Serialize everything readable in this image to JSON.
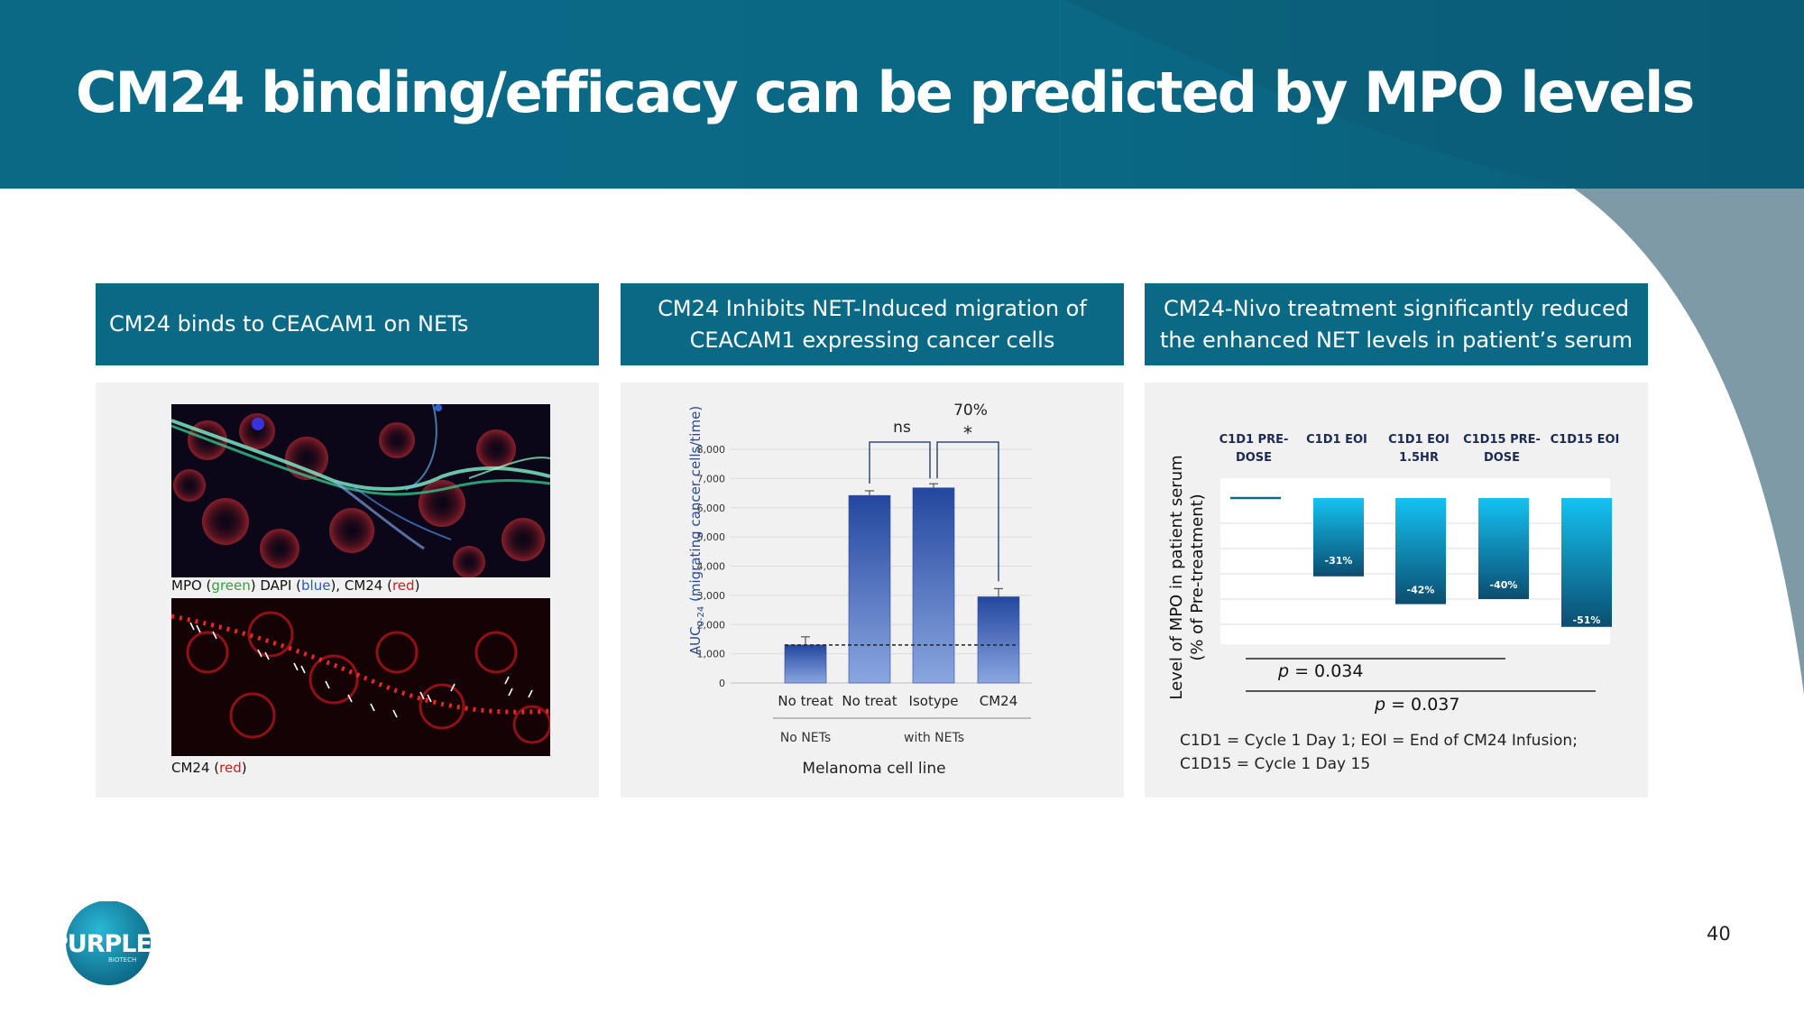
{
  "slide": {
    "title": "CM24 binding/efficacy can be predicted by MPO levels",
    "page_number": "40",
    "colors": {
      "header": "#0a6a86",
      "panel_bg": "#f1f1f1",
      "bar_blue": "#2f56b0",
      "bar_teal": "#11b6e6"
    }
  },
  "logo": {
    "text": "PURPLE",
    "subtext": "BIOTECH"
  },
  "panel1": {
    "header": "CM24 binds to CEACAM1 on NETs",
    "caption1": {
      "a": "MPO (",
      "green": "green",
      "b": ") DAPI (",
      "blue": "blue",
      "c": "), CM24 (",
      "red": "red",
      "d": ")"
    },
    "caption2": {
      "a": "CM24 (",
      "red": "red",
      "b": ")"
    }
  },
  "panel2": {
    "header": "CM24 Inhibits NET-Induced migration of\nCEACAM1 expressing cancer cells"
  },
  "panel3": {
    "header": "CM24-Nivo treatment significantly reduced\nthe enhanced NET levels in patient’s serum",
    "definitions": [
      "C1D1 = Cycle 1 Day 1; EOI = End of CM24 Infusion;",
      "C1D15 = Cycle 1 Day 15"
    ]
  },
  "chart_data": [
    {
      "type": "bar",
      "title": "",
      "ylabel": "AUC0-24 (migrating cancer cells/time)",
      "ylabel_main": "AUC",
      "ylabel_sub": "0-24",
      "ylabel_rest": " (migrating cancer cells/time)",
      "xlabel": "Melanoma cell line",
      "categories": [
        "No treat",
        "No treat",
        "Isotype",
        "CM24"
      ],
      "values": [
        1300,
        6420,
        6680,
        2950
      ],
      "errors": [
        280,
        160,
        140,
        280
      ],
      "groups": [
        {
          "label": "No NETs",
          "members": [
            0
          ]
        },
        {
          "label": "with NETs",
          "members": [
            1,
            2,
            3
          ]
        }
      ],
      "ylim": [
        0,
        8000
      ],
      "yticks": [
        0,
        1000,
        2000,
        3000,
        4000,
        5000,
        6000,
        7000,
        8000
      ],
      "ytick_labels": [
        "0",
        "1,000",
        "2,000",
        "3,000",
        "4,000",
        "5,000",
        "6,000",
        "7,000",
        "8,000"
      ],
      "baseline": 1300,
      "annotations": {
        "ns_label": "ns",
        "pct_label": "70%",
        "star_label": "*"
      }
    },
    {
      "type": "bar",
      "title": "",
      "ylabel": "Level of MPO in patient serum\n(% of Pre-treatment)",
      "ylabel_line1": "Level of MPO in patient serum",
      "ylabel_line2": "(% of Pre-treatment)",
      "categories": [
        [
          "C1D1 PRE-",
          "DOSE"
        ],
        [
          "C1D1 EOI"
        ],
        [
          "C1D1 EOI",
          "1.5HR"
        ],
        [
          "C1D15 PRE-",
          "DOSE"
        ],
        [
          "C1D15 EOI"
        ]
      ],
      "values": [
        0,
        -31,
        -42,
        -40,
        -51
      ],
      "data_labels": [
        "",
        "-31%",
        "-42%",
        "-40%",
        "-51%"
      ],
      "ylim": [
        -55,
        0
      ],
      "p_values": [
        {
          "prefix": "p",
          "text": " = 0.034"
        },
        {
          "prefix": "p",
          "text": " = 0.037"
        }
      ]
    }
  ]
}
